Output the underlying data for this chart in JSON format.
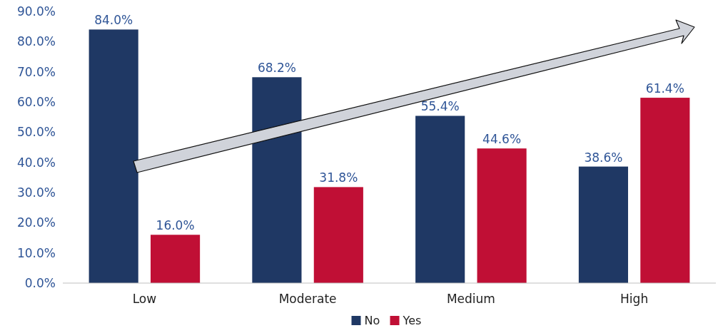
{
  "chart_data": {
    "type": "bar",
    "categories": [
      "Low",
      "Moderate",
      "Medium",
      "High"
    ],
    "series": [
      {
        "name": "No",
        "color": "#1f3864",
        "values": [
          84.0,
          68.2,
          55.4,
          38.6
        ],
        "value_labels": [
          "84.0%",
          "68.2%",
          "55.4%",
          "38.6%"
        ]
      },
      {
        "name": "Yes",
        "color": "#c00f35",
        "values": [
          16.0,
          31.8,
          44.6,
          61.4
        ],
        "value_labels": [
          "16.0%",
          "31.8%",
          "44.6%",
          "61.4%"
        ]
      }
    ],
    "ylim": [
      0,
      90
    ],
    "yticks": [
      {
        "value": 0,
        "label": "0.0%"
      },
      {
        "value": 10,
        "label": "10.0%"
      },
      {
        "value": 20,
        "label": "20.0%"
      },
      {
        "value": 30,
        "label": "30.0%"
      },
      {
        "value": 40,
        "label": "40.0%"
      },
      {
        "value": 50,
        "label": "50.0%"
      },
      {
        "value": 60,
        "label": "60.0%"
      },
      {
        "value": 70,
        "label": "70.0%"
      },
      {
        "value": 80,
        "label": "80.0%"
      },
      {
        "value": 90,
        "label": "90.0%"
      }
    ],
    "grid": false,
    "legend": "bottom"
  }
}
